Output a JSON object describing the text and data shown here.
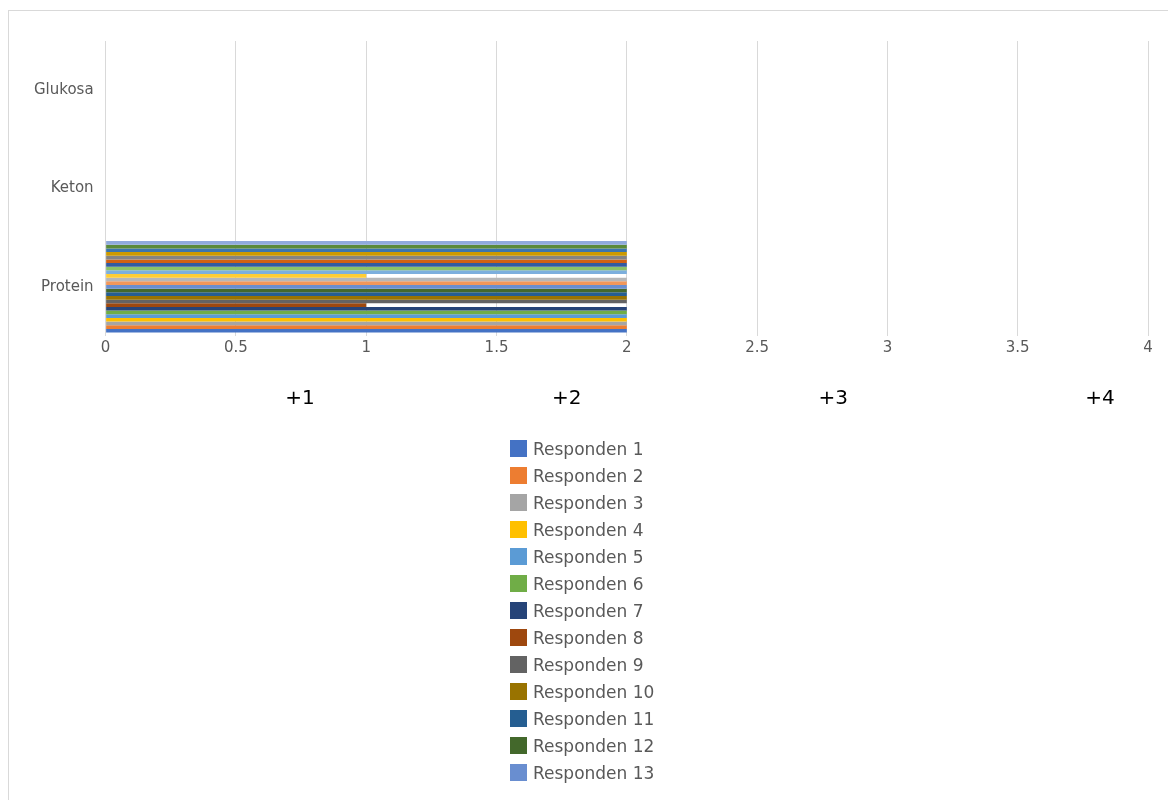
{
  "chart_data": {
    "type": "bar",
    "orientation": "horizontal",
    "categories": [
      "Glukosa",
      "Keton",
      "Protein"
    ],
    "xlim": [
      0,
      4
    ],
    "xticks": [
      0,
      0.5,
      1,
      1.5,
      2,
      2.5,
      3,
      3.5,
      4
    ],
    "grid": "x",
    "legend": "bottom",
    "annotations": [
      "+1",
      "+2",
      "+3",
      "+4"
    ],
    "series": [
      {
        "name": "Responden 1",
        "color": "#4472c4",
        "values": [
          0,
          0,
          2
        ]
      },
      {
        "name": "Responden 2",
        "color": "#ed7d31",
        "values": [
          0,
          0,
          2
        ]
      },
      {
        "name": "Responden 3",
        "color": "#a5a5a5",
        "values": [
          0,
          0,
          2
        ]
      },
      {
        "name": "Responden 4",
        "color": "#ffc000",
        "values": [
          0,
          0,
          2
        ]
      },
      {
        "name": "Responden 5",
        "color": "#5b9bd5",
        "values": [
          0,
          0,
          2
        ]
      },
      {
        "name": "Responden 6",
        "color": "#70ad47",
        "values": [
          0,
          0,
          2
        ]
      },
      {
        "name": "Responden 7",
        "color": "#264478",
        "values": [
          0,
          0,
          2
        ]
      },
      {
        "name": "Responden 8",
        "color": "#9e480e",
        "values": [
          0,
          0,
          1
        ]
      },
      {
        "name": "Responden 9",
        "color": "#636363",
        "values": [
          0,
          0,
          2
        ]
      },
      {
        "name": "Responden 10",
        "color": "#997300",
        "values": [
          0,
          0,
          2
        ]
      },
      {
        "name": "Responden 11",
        "color": "#255e91",
        "values": [
          0,
          0,
          2
        ]
      },
      {
        "name": "Responden 12",
        "color": "#43682b",
        "values": [
          0,
          0,
          2
        ]
      },
      {
        "name": "Responden 13",
        "color": "#698ed0",
        "values": [
          0,
          0,
          2
        ]
      },
      {
        "color": "#f1975a",
        "values": [
          0,
          0,
          2
        ]
      },
      {
        "color": "#b7b7b7",
        "values": [
          0,
          0,
          2
        ]
      },
      {
        "color": "#ffcd33",
        "values": [
          0,
          0,
          1
        ]
      },
      {
        "color": "#7cafdd",
        "values": [
          0,
          0,
          2
        ]
      },
      {
        "color": "#8cc168",
        "values": [
          0,
          0,
          2
        ]
      },
      {
        "color": "#335aa1",
        "values": [
          0,
          0,
          2
        ]
      },
      {
        "color": "#d26012",
        "values": [
          0,
          0,
          2
        ]
      },
      {
        "color": "#848484",
        "values": [
          0,
          0,
          2
        ]
      },
      {
        "color": "#cc9a00",
        "values": [
          0,
          0,
          2
        ]
      },
      {
        "color": "#3a75ae",
        "values": [
          0,
          0,
          2
        ]
      },
      {
        "color": "#5a8a39",
        "values": [
          0,
          0,
          2
        ]
      },
      {
        "color": "#8faadc",
        "values": [
          0,
          0,
          2
        ]
      }
    ]
  }
}
